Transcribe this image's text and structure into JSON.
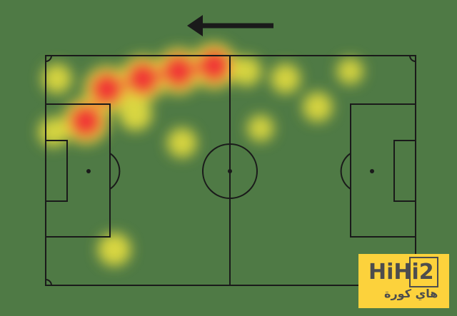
{
  "direction_arrow": "arrow-left-icon",
  "colors": {
    "pitch": "#4f7a45",
    "lines": "#1a1a1a",
    "heat_low": "#e8e040",
    "heat_high": "#f03a35",
    "logo_bg": "#fcd23c"
  },
  "heatmap": {
    "pitch_size_m": [
      105,
      68
    ],
    "points": [
      {
        "x": 47.8,
        "y": 3.0,
        "i": 1
      },
      {
        "x": 37.7,
        "y": 4.6,
        "i": 1
      },
      {
        "x": 27.6,
        "y": 6.8,
        "i": 1
      },
      {
        "x": 17.4,
        "y": 9.9,
        "i": 1
      },
      {
        "x": 11.4,
        "y": 19.4,
        "i": 1
      },
      {
        "x": 3.2,
        "y": 6.8,
        "i": 0.5
      },
      {
        "x": 2.2,
        "y": 22.6,
        "i": 0.5
      },
      {
        "x": 38.7,
        "y": 25.8,
        "i": 0.5
      },
      {
        "x": 19.5,
        "y": 57.4,
        "i": 0.6
      },
      {
        "x": 57,
        "y": 4.6,
        "i": 0.5
      },
      {
        "x": 68.1,
        "y": 6.8,
        "i": 0.5
      },
      {
        "x": 77.2,
        "y": 15.2,
        "i": 0.5
      },
      {
        "x": 86.4,
        "y": 4.6,
        "i": 0.4
      },
      {
        "x": 61,
        "y": 21.5,
        "i": 0.4
      },
      {
        "x": 25.5,
        "y": 17.3,
        "i": 0.6
      }
    ]
  },
  "logo": {
    "brand": "HiHi2",
    "arabic": "هاي كورة"
  }
}
